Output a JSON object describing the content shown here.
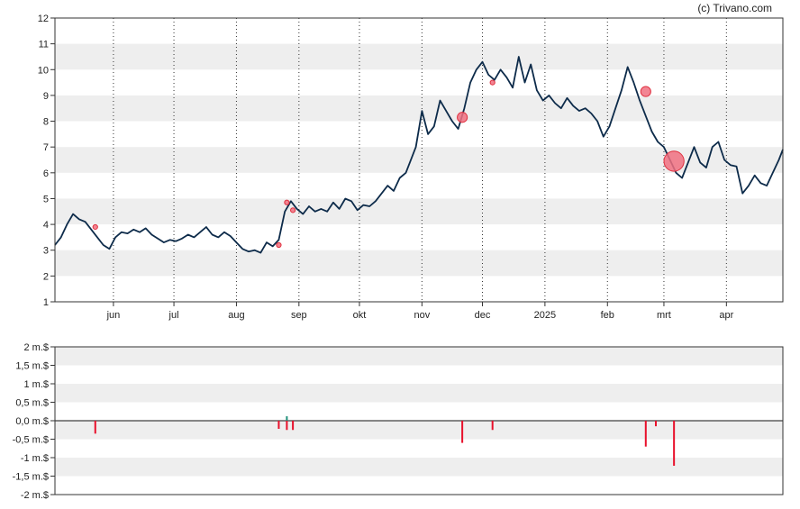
{
  "credit": "(c) Trivano.com",
  "colors": {
    "price_line": "#0d2b4a",
    "band": "#eeeeee",
    "insider_sell": "#e8102b",
    "insider_buy": "#1f8f7a",
    "marker_fill": "#f07080",
    "marker_stroke": "#e0303f"
  },
  "chart_data": [
    {
      "type": "line",
      "title": "",
      "xlabel": "",
      "ylabel": "",
      "ylim": [
        1,
        12
      ],
      "yticks": [
        1,
        2,
        3,
        4,
        5,
        6,
        7,
        8,
        9,
        10,
        11,
        12
      ],
      "grid": "alternating horizontal bands, dotted vertical month lines",
      "x_range": [
        "2024-05-03",
        "2025-04-29"
      ],
      "xticks": [
        {
          "date": "2024-06-01",
          "label": "jun"
        },
        {
          "date": "2024-07-01",
          "label": "jul"
        },
        {
          "date": "2024-08-01",
          "label": "aug"
        },
        {
          "date": "2024-09-01",
          "label": "sep"
        },
        {
          "date": "2024-10-01",
          "label": "okt"
        },
        {
          "date": "2024-11-01",
          "label": "nov"
        },
        {
          "date": "2024-12-01",
          "label": "dec"
        },
        {
          "date": "2025-01-01",
          "label": "2025"
        },
        {
          "date": "2025-02-01",
          "label": "feb"
        },
        {
          "date": "2025-03-01",
          "label": "mrt"
        },
        {
          "date": "2025-04-01",
          "label": "apr"
        }
      ],
      "series": [
        {
          "x": [
            "2024-05-03",
            "2024-05-06",
            "2024-05-09",
            "2024-05-12",
            "2024-05-15",
            "2024-05-18",
            "2024-05-21",
            "2024-05-24",
            "2024-05-27",
            "2024-05-30",
            "2024-06-02",
            "2024-06-05",
            "2024-06-08",
            "2024-06-11",
            "2024-06-14",
            "2024-06-17",
            "2024-06-20",
            "2024-06-23",
            "2024-06-26",
            "2024-06-29",
            "2024-07-02",
            "2024-07-05",
            "2024-07-08",
            "2024-07-11",
            "2024-07-14",
            "2024-07-17",
            "2024-07-20",
            "2024-07-23",
            "2024-07-26",
            "2024-07-29",
            "2024-08-01",
            "2024-08-04",
            "2024-08-07",
            "2024-08-10",
            "2024-08-13",
            "2024-08-16",
            "2024-08-19",
            "2024-08-22",
            "2024-08-25",
            "2024-08-28",
            "2024-08-31",
            "2024-09-03",
            "2024-09-06",
            "2024-09-09",
            "2024-09-12",
            "2024-09-15",
            "2024-09-18",
            "2024-09-21",
            "2024-09-24",
            "2024-09-27",
            "2024-09-30",
            "2024-10-03",
            "2024-10-06",
            "2024-10-09",
            "2024-10-12",
            "2024-10-15",
            "2024-10-18",
            "2024-10-21",
            "2024-10-24",
            "2024-10-27",
            "2024-10-29",
            "2024-11-01",
            "2024-11-04",
            "2024-11-07",
            "2024-11-10",
            "2024-11-13",
            "2024-11-16",
            "2024-11-19",
            "2024-11-22",
            "2024-11-25",
            "2024-11-28",
            "2024-12-01",
            "2024-12-04",
            "2024-12-07",
            "2024-12-10",
            "2024-12-13",
            "2024-12-16",
            "2024-12-19",
            "2024-12-22",
            "2024-12-25",
            "2024-12-28",
            "2024-12-31",
            "2025-01-03",
            "2025-01-06",
            "2025-01-09",
            "2025-01-12",
            "2025-01-15",
            "2025-01-18",
            "2025-01-21",
            "2025-01-24",
            "2025-01-27",
            "2025-01-30",
            "2025-02-02",
            "2025-02-05",
            "2025-02-08",
            "2025-02-11",
            "2025-02-14",
            "2025-02-17",
            "2025-02-20",
            "2025-02-23",
            "2025-02-26",
            "2025-03-01",
            "2025-03-04",
            "2025-03-07",
            "2025-03-10",
            "2025-03-13",
            "2025-03-16",
            "2025-03-19",
            "2025-03-22",
            "2025-03-25",
            "2025-03-28",
            "2025-03-31",
            "2025-04-03",
            "2025-04-06",
            "2025-04-09",
            "2025-04-12",
            "2025-04-15",
            "2025-04-18",
            "2025-04-21",
            "2025-04-24",
            "2025-04-27",
            "2025-04-29"
          ],
          "values": [
            3.2,
            3.5,
            4.0,
            4.4,
            4.2,
            4.1,
            3.8,
            3.5,
            3.2,
            3.05,
            3.5,
            3.7,
            3.65,
            3.8,
            3.7,
            3.85,
            3.6,
            3.45,
            3.3,
            3.4,
            3.35,
            3.45,
            3.6,
            3.5,
            3.7,
            3.9,
            3.6,
            3.5,
            3.7,
            3.55,
            3.3,
            3.05,
            2.95,
            3.0,
            2.9,
            3.3,
            3.15,
            3.4,
            4.5,
            4.9,
            4.6,
            4.4,
            4.7,
            4.5,
            4.6,
            4.5,
            4.85,
            4.6,
            5.0,
            4.9,
            4.55,
            4.75,
            4.7,
            4.9,
            5.2,
            5.5,
            5.3,
            5.8,
            6.0,
            6.6,
            7.0,
            8.4,
            7.5,
            7.8,
            8.8,
            8.4,
            8.0,
            7.7,
            8.5,
            9.5,
            10.0,
            10.3,
            9.8,
            9.6,
            10.0,
            9.7,
            9.3,
            10.5,
            9.5,
            10.2,
            9.2,
            8.8,
            9.0,
            8.7,
            8.5,
            8.9,
            8.6,
            8.4,
            8.5,
            8.3,
            8.0,
            7.4,
            7.8,
            8.5,
            9.2,
            10.1,
            9.5,
            8.8,
            8.2,
            7.6,
            7.2,
            7.0,
            6.5,
            6.0,
            5.8,
            6.4,
            7.0,
            6.4,
            6.2,
            7.0,
            7.2,
            6.5,
            6.3,
            6.25,
            5.2,
            5.5,
            5.9,
            5.6,
            5.5,
            6.0,
            6.5,
            6.9
          ]
        }
      ],
      "markers": [
        {
          "date": "2024-05-23",
          "value": 3.9,
          "size": 1
        },
        {
          "date": "2024-08-22",
          "value": 3.2,
          "size": 1
        },
        {
          "date": "2024-08-26",
          "value": 4.85,
          "size": 1
        },
        {
          "date": "2024-08-29",
          "value": 4.55,
          "size": 1
        },
        {
          "date": "2024-11-21",
          "value": 8.15,
          "size": 3
        },
        {
          "date": "2024-12-06",
          "value": 9.5,
          "size": 1
        },
        {
          "date": "2025-02-20",
          "value": 9.15,
          "size": 3
        },
        {
          "date": "2025-03-06",
          "value": 6.45,
          "size": 6
        }
      ]
    },
    {
      "type": "bar",
      "title": "",
      "ylim": [
        -2,
        2
      ],
      "yticks": [
        {
          "value": 2,
          "label": "2 m.$"
        },
        {
          "value": 1.5,
          "label": "1,5 m.$"
        },
        {
          "value": 1,
          "label": "1 m.$"
        },
        {
          "value": 0.5,
          "label": "0,5 m.$"
        },
        {
          "value": 0,
          "label": "0,0 m.$"
        },
        {
          "value": -0.5,
          "label": "-0,5 m.$"
        },
        {
          "value": -1,
          "label": "-1 m.$"
        },
        {
          "value": -1.5,
          "label": "-1,5 m.$"
        },
        {
          "value": -2,
          "label": "-2 m.$"
        }
      ],
      "bars": [
        {
          "date": "2024-05-23",
          "value": -0.35,
          "kind": "sell"
        },
        {
          "date": "2024-08-22",
          "value": -0.22,
          "kind": "sell"
        },
        {
          "date": "2024-08-26",
          "value": -0.25,
          "kind": "sell"
        },
        {
          "date": "2024-08-26",
          "value": 0.12,
          "kind": "buy"
        },
        {
          "date": "2024-08-29",
          "value": -0.25,
          "kind": "sell"
        },
        {
          "date": "2024-11-21",
          "value": -0.6,
          "kind": "sell"
        },
        {
          "date": "2024-12-06",
          "value": -0.25,
          "kind": "sell"
        },
        {
          "date": "2025-02-20",
          "value": -0.7,
          "kind": "sell"
        },
        {
          "date": "2025-02-25",
          "value": -0.15,
          "kind": "sell"
        },
        {
          "date": "2025-03-06",
          "value": -1.22,
          "kind": "sell"
        }
      ]
    }
  ]
}
